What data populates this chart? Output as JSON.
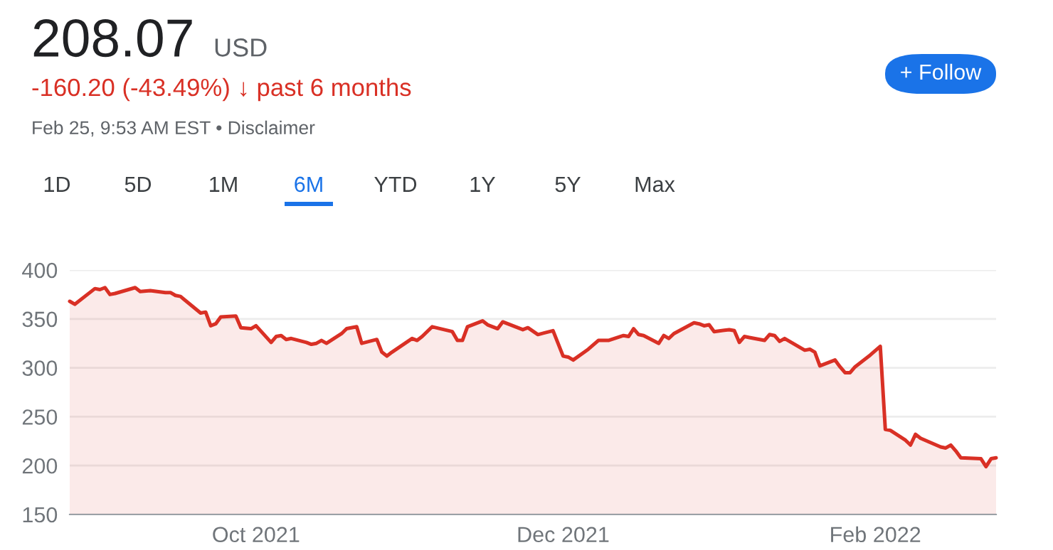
{
  "chart_data": {
    "type": "area",
    "title": "208.07",
    "subtitle": "-160.20 (-43.49%) ↓ past 6 months",
    "annotations": [
      "USD",
      "Feb 25, 9:53 AM EST • Disclaimer",
      "+ Follow",
      "1D",
      "5D",
      "1M",
      "6M",
      "YTD",
      "1Y",
      "5Y",
      "Max"
    ],
    "x": [
      "2021-08-25",
      "2021-08-26",
      "2021-08-30",
      "2021-08-31",
      "2021-09-01",
      "2021-09-02",
      "2021-09-03",
      "2021-09-07",
      "2021-09-08",
      "2021-09-10",
      "2021-09-13",
      "2021-09-14",
      "2021-09-15",
      "2021-09-16",
      "2021-09-20",
      "2021-09-21",
      "2021-09-22",
      "2021-09-23",
      "2021-09-24",
      "2021-09-27",
      "2021-09-28",
      "2021-09-30",
      "2021-10-01",
      "2021-10-04",
      "2021-10-05",
      "2021-10-06",
      "2021-10-07",
      "2021-10-08",
      "2021-10-11",
      "2021-10-12",
      "2021-10-13",
      "2021-10-14",
      "2021-10-15",
      "2021-10-18",
      "2021-10-19",
      "2021-10-21",
      "2021-10-22",
      "2021-10-25",
      "2021-10-26",
      "2021-10-27",
      "2021-10-28",
      "2021-11-01",
      "2021-11-02",
      "2021-11-03",
      "2021-11-05",
      "2021-11-09",
      "2021-11-10",
      "2021-11-11",
      "2021-11-12",
      "2021-11-15",
      "2021-11-16",
      "2021-11-18",
      "2021-11-19",
      "2021-11-23",
      "2021-11-24",
      "2021-11-26",
      "2021-11-29",
      "2021-12-01",
      "2021-12-02",
      "2021-12-03",
      "2021-12-06",
      "2021-12-08",
      "2021-12-10",
      "2021-12-13",
      "2021-12-14",
      "2021-12-15",
      "2021-12-16",
      "2021-12-17",
      "2021-12-20",
      "2021-12-21",
      "2021-12-22",
      "2021-12-23",
      "2021-12-27",
      "2021-12-28",
      "2021-12-29",
      "2021-12-30",
      "2021-12-31",
      "2022-01-03",
      "2022-01-04",
      "2022-01-05",
      "2022-01-06",
      "2022-01-07",
      "2022-01-10",
      "2022-01-11",
      "2022-01-12",
      "2022-01-13",
      "2022-01-14",
      "2022-01-18",
      "2022-01-19",
      "2022-01-20",
      "2022-01-21",
      "2022-01-24",
      "2022-01-25",
      "2022-01-26",
      "2022-01-27",
      "2022-01-28",
      "2022-01-31",
      "2022-02-02",
      "2022-02-03",
      "2022-02-04",
      "2022-02-07",
      "2022-02-08",
      "2022-02-09",
      "2022-02-10",
      "2022-02-14",
      "2022-02-15",
      "2022-02-16",
      "2022-02-17",
      "2022-02-18",
      "2022-02-22",
      "2022-02-23",
      "2022-02-24",
      "2022-02-25"
    ],
    "series": [
      {
        "color": "#d93025",
        "values": [
          368,
          365,
          381,
          380,
          382,
          375,
          376,
          382,
          378,
          379,
          377,
          377,
          374,
          373,
          356,
          357,
          343,
          345,
          352,
          353,
          341,
          340,
          343,
          326,
          332,
          333,
          329,
          330,
          326,
          324,
          325,
          328,
          325,
          335,
          340,
          342,
          325,
          329,
          316,
          312,
          316,
          330,
          328,
          332,
          342,
          337,
          328,
          328,
          342,
          348,
          344,
          340,
          347,
          339,
          341,
          334,
          338,
          312,
          311,
          308,
          319,
          328,
          328,
          333,
          332,
          340,
          334,
          333,
          325,
          333,
          330,
          335,
          346,
          345,
          343,
          344,
          337,
          339,
          338,
          326,
          332,
          331,
          328,
          334,
          333,
          327,
          330,
          318,
          319,
          316,
          302,
          308,
          301,
          295,
          295,
          301,
          313,
          322,
          237,
          236,
          226,
          221,
          232,
          228,
          219,
          218,
          221,
          215,
          208,
          207,
          199,
          207,
          208
        ]
      }
    ],
    "xlim": [
      "2021-08-25",
      "2022-02-25"
    ],
    "xticks": [
      {
        "value": "2021-10-01",
        "label": "Oct 2021"
      },
      {
        "value": "2021-12-01",
        "label": "Dec 2021"
      },
      {
        "value": "2022-02-01",
        "label": "Feb 2022"
      }
    ],
    "ylim": [
      150,
      400
    ],
    "yticks": [
      150,
      200,
      250,
      300,
      350,
      400
    ],
    "grid": "y",
    "legend": false
  }
}
